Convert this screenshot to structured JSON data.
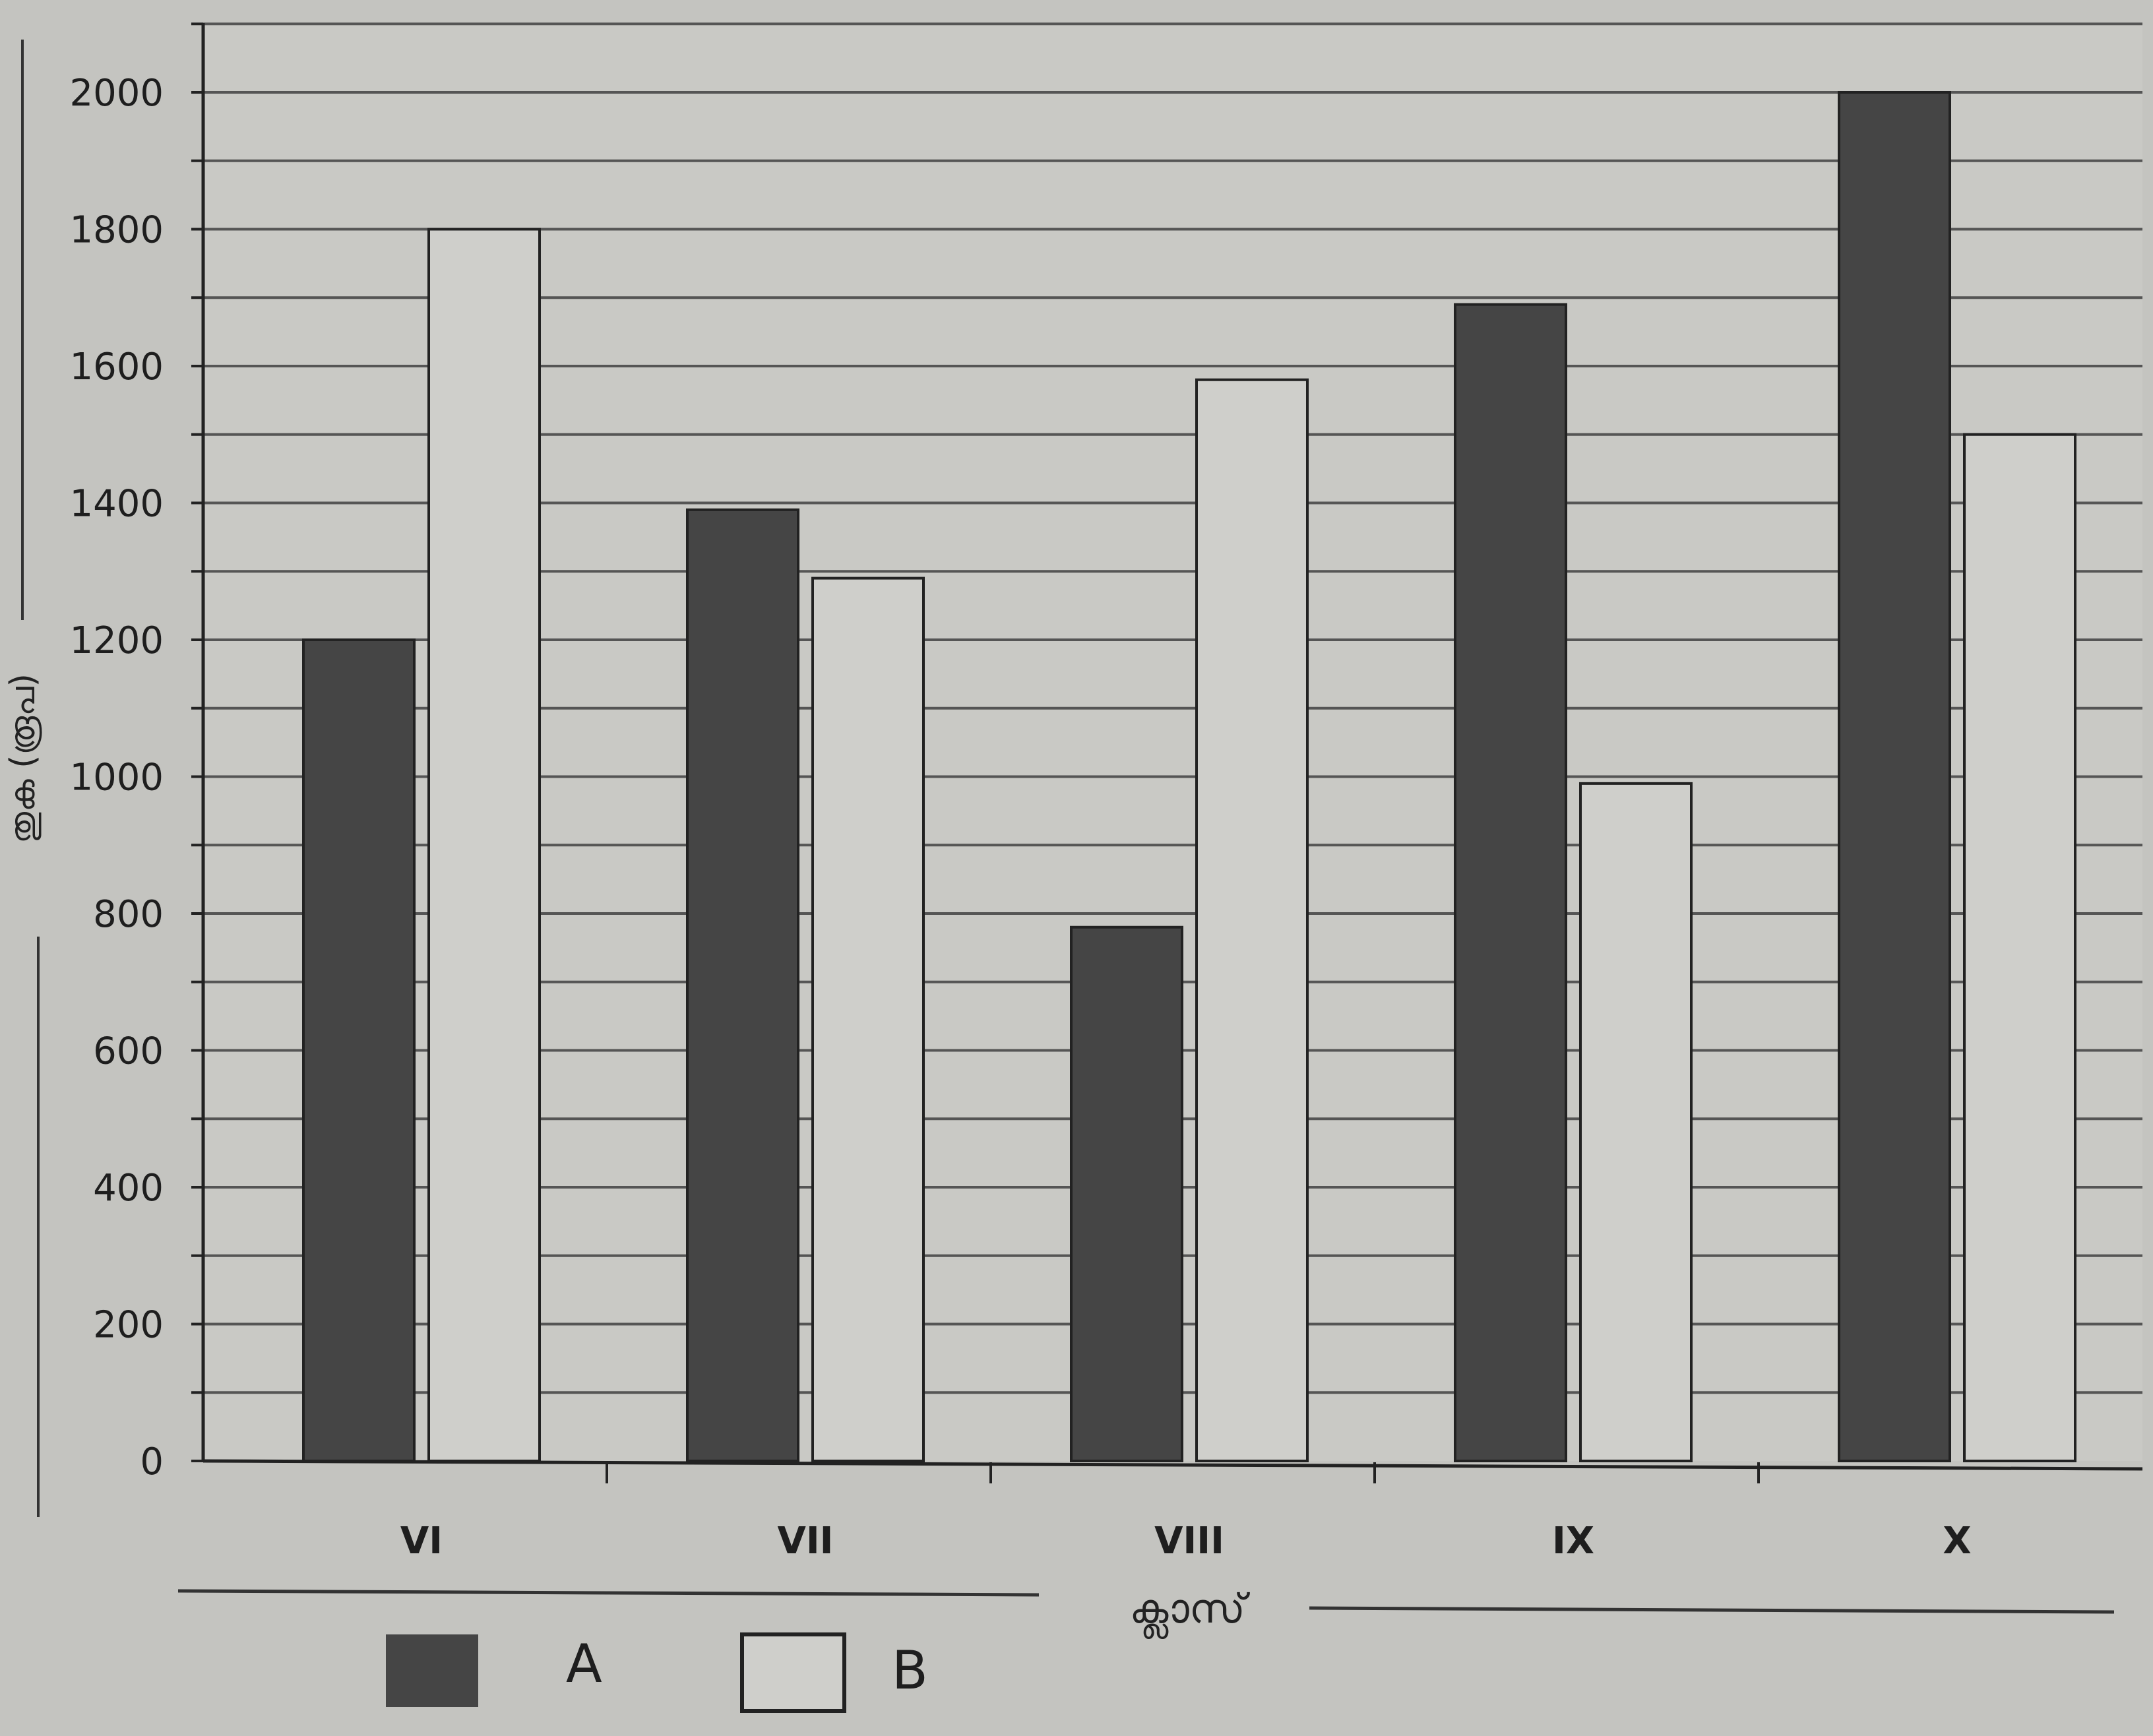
{
  "chart_data": {
    "type": "bar",
    "title": "",
    "xlabel": "ക്ലാസ്",
    "ylabel": "തുക (രൂപ)",
    "categories": [
      "VI",
      "VII",
      "VIII",
      "IX",
      "X"
    ],
    "series": [
      {
        "name": "A",
        "color": "#454545",
        "values": [
          1200,
          1390,
          780,
          1690,
          2000
        ]
      },
      {
        "name": "B",
        "color": "#cfcfcb",
        "values": [
          1800,
          1290,
          1580,
          990,
          1500
        ]
      }
    ],
    "yticks": [
      0,
      200,
      400,
      600,
      800,
      1000,
      1200,
      1400,
      1600,
      1800,
      2000
    ],
    "ylim": [
      0,
      2000
    ],
    "grid": true,
    "legend_position": "bottom-left"
  }
}
